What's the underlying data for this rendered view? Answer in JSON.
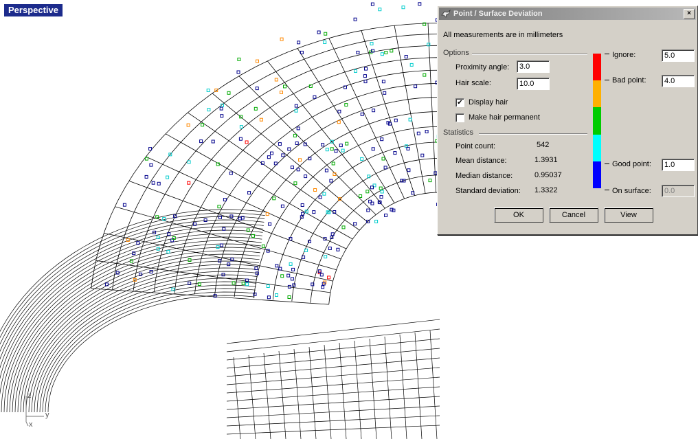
{
  "viewport": {
    "label": "Perspective",
    "axis": {
      "z": "z",
      "y": "y",
      "x": "x"
    }
  },
  "dialog": {
    "title": "Point / Surface Deviation",
    "close_glyph": "×",
    "units_note": "All measurements are in millimeters",
    "options": {
      "header": "Options",
      "proximity_angle_label": "Proximity angle:",
      "proximity_angle_value": "3.0",
      "hair_scale_label": "Hair scale:",
      "hair_scale_value": "10.0",
      "display_hair_label": "Display hair",
      "display_hair_checked": true,
      "make_hair_permanent_label": "Make hair permanent",
      "make_hair_permanent_checked": false
    },
    "statistics": {
      "header": "Statistics",
      "point_count_label": "Point count:",
      "point_count_value": "542",
      "mean_label": "Mean distance:",
      "mean_value": "1.3931",
      "median_label": "Median distance:",
      "median_value": "0.95037",
      "std_label": "Standard deviation:",
      "std_value": "1.3322"
    },
    "thresholds": {
      "ignore_label": "Ignore:",
      "ignore_value": "5.0",
      "bad_label": "Bad point:",
      "bad_value": "4.0",
      "good_label": "Good point:",
      "good_value": "1.0",
      "on_surface_label": "On surface:",
      "on_surface_value": "0.0"
    },
    "color_bar": [
      "#ff0000",
      "#ffb000",
      "#00cc00",
      "#00ffff",
      "#0000ff"
    ],
    "buttons": {
      "ok": "OK",
      "cancel": "Cancel",
      "view": "View"
    }
  }
}
